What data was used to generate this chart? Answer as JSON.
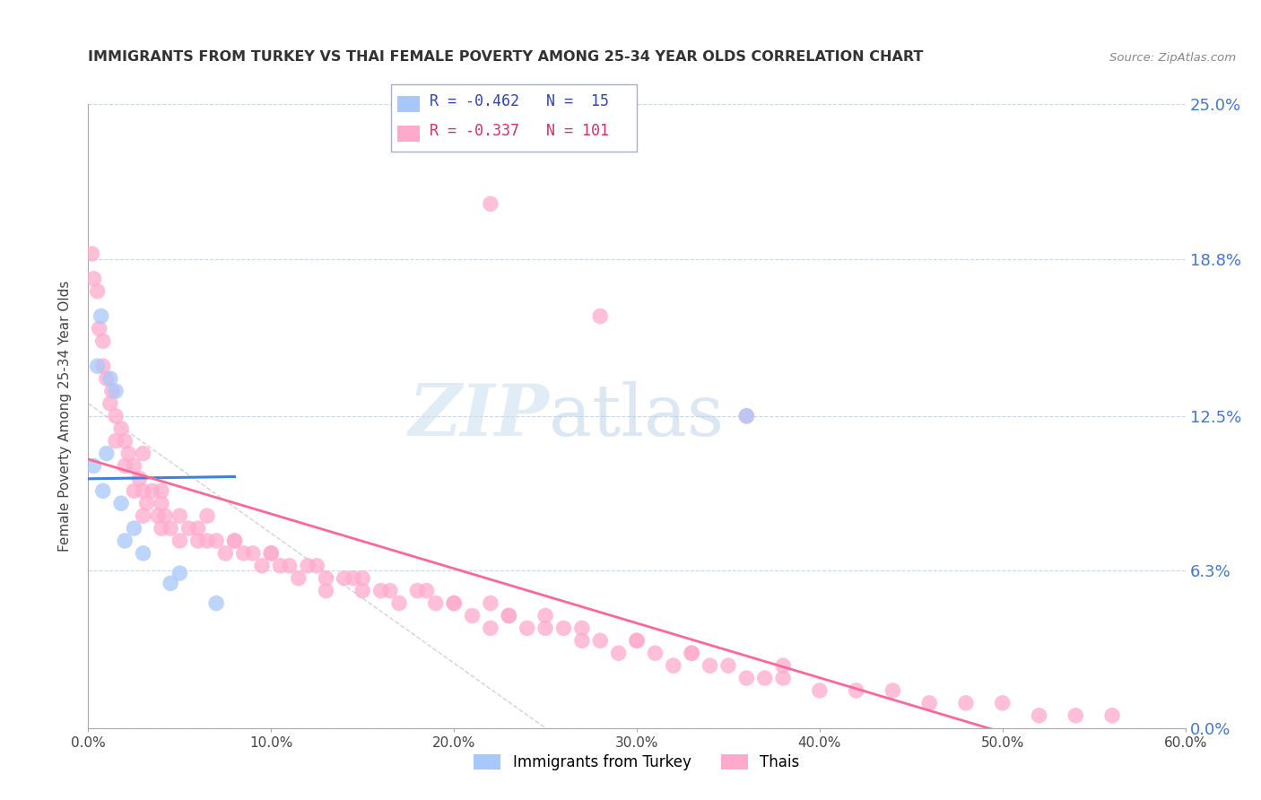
{
  "title": "IMMIGRANTS FROM TURKEY VS THAI FEMALE POVERTY AMONG 25-34 YEAR OLDS CORRELATION CHART",
  "source": "Source: ZipAtlas.com",
  "ylabel": "Female Poverty Among 25-34 Year Olds",
  "xlabel_ticks": [
    "0.0%",
    "10.0%",
    "20.0%",
    "30.0%",
    "40.0%",
    "50.0%",
    "60.0%"
  ],
  "xlabel_vals": [
    0,
    10,
    20,
    30,
    40,
    50,
    60
  ],
  "ytick_labels": [
    "25.0%",
    "18.8%",
    "12.5%",
    "6.3%",
    "0.0%"
  ],
  "ytick_vals": [
    25.0,
    18.8,
    12.5,
    6.3,
    0.0
  ],
  "xlim": [
    0,
    60
  ],
  "ylim": [
    0,
    25.0
  ],
  "legend_r1": "R = -0.462",
  "legend_n1": "N =  15",
  "legend_r2": "R = -0.337",
  "legend_n2": "N = 101",
  "color_turkey": "#a8c8fa",
  "color_thai": "#ffaacc",
  "color_trend_turkey": "#4080e0",
  "color_trend_thai": "#ff6699",
  "color_diagonal": "#cccccc",
  "watermark_zip": "ZIP",
  "watermark_atlas": "atlas",
  "turkey_x": [
    0.3,
    0.5,
    0.7,
    0.8,
    1.0,
    1.2,
    1.5,
    1.8,
    2.0,
    2.5,
    3.0,
    4.5,
    5.0,
    7.0,
    36.0
  ],
  "turkey_y": [
    10.5,
    14.5,
    16.5,
    9.5,
    11.0,
    14.0,
    13.5,
    9.0,
    7.5,
    8.0,
    7.0,
    5.8,
    6.2,
    5.0,
    12.5
  ],
  "thai_x": [
    0.2,
    0.3,
    0.5,
    0.6,
    0.8,
    0.8,
    1.0,
    1.2,
    1.3,
    1.5,
    1.5,
    1.8,
    2.0,
    2.0,
    2.2,
    2.5,
    2.5,
    2.8,
    3.0,
    3.0,
    3.2,
    3.5,
    3.8,
    4.0,
    4.0,
    4.2,
    4.5,
    5.0,
    5.0,
    5.5,
    6.0,
    6.0,
    6.5,
    7.0,
    7.5,
    8.0,
    8.5,
    9.0,
    9.5,
    10.0,
    10.5,
    11.0,
    11.5,
    12.0,
    13.0,
    13.0,
    14.0,
    15.0,
    15.0,
    16.0,
    17.0,
    18.0,
    19.0,
    20.0,
    21.0,
    22.0,
    22.0,
    23.0,
    24.0,
    25.0,
    26.0,
    27.0,
    28.0,
    29.0,
    30.0,
    31.0,
    32.0,
    33.0,
    34.0,
    35.0,
    36.0,
    37.0,
    38.0,
    40.0,
    42.0,
    44.0,
    46.0,
    48.0,
    50.0,
    52.0,
    54.0,
    56.0,
    22.0,
    28.0,
    36.0,
    3.0,
    4.0,
    6.5,
    8.0,
    10.0,
    12.5,
    14.5,
    16.5,
    18.5,
    20.0,
    23.0,
    25.0,
    27.0,
    30.0,
    33.0,
    38.0
  ],
  "thai_y": [
    19.0,
    18.0,
    17.5,
    16.0,
    15.5,
    14.5,
    14.0,
    13.0,
    13.5,
    12.5,
    11.5,
    12.0,
    11.5,
    10.5,
    11.0,
    10.5,
    9.5,
    10.0,
    9.5,
    8.5,
    9.0,
    9.5,
    8.5,
    9.0,
    8.0,
    8.5,
    8.0,
    8.5,
    7.5,
    8.0,
    7.5,
    8.0,
    7.5,
    7.5,
    7.0,
    7.5,
    7.0,
    7.0,
    6.5,
    7.0,
    6.5,
    6.5,
    6.0,
    6.5,
    6.0,
    5.5,
    6.0,
    5.5,
    6.0,
    5.5,
    5.0,
    5.5,
    5.0,
    5.0,
    4.5,
    5.0,
    4.0,
    4.5,
    4.0,
    4.0,
    4.0,
    3.5,
    3.5,
    3.0,
    3.5,
    3.0,
    2.5,
    3.0,
    2.5,
    2.5,
    2.0,
    2.0,
    2.0,
    1.5,
    1.5,
    1.5,
    1.0,
    1.0,
    1.0,
    0.5,
    0.5,
    0.5,
    21.0,
    16.5,
    12.5,
    11.0,
    9.5,
    8.5,
    7.5,
    7.0,
    6.5,
    6.0,
    5.5,
    5.5,
    5.0,
    4.5,
    4.5,
    4.0,
    3.5,
    3.0,
    2.5
  ]
}
